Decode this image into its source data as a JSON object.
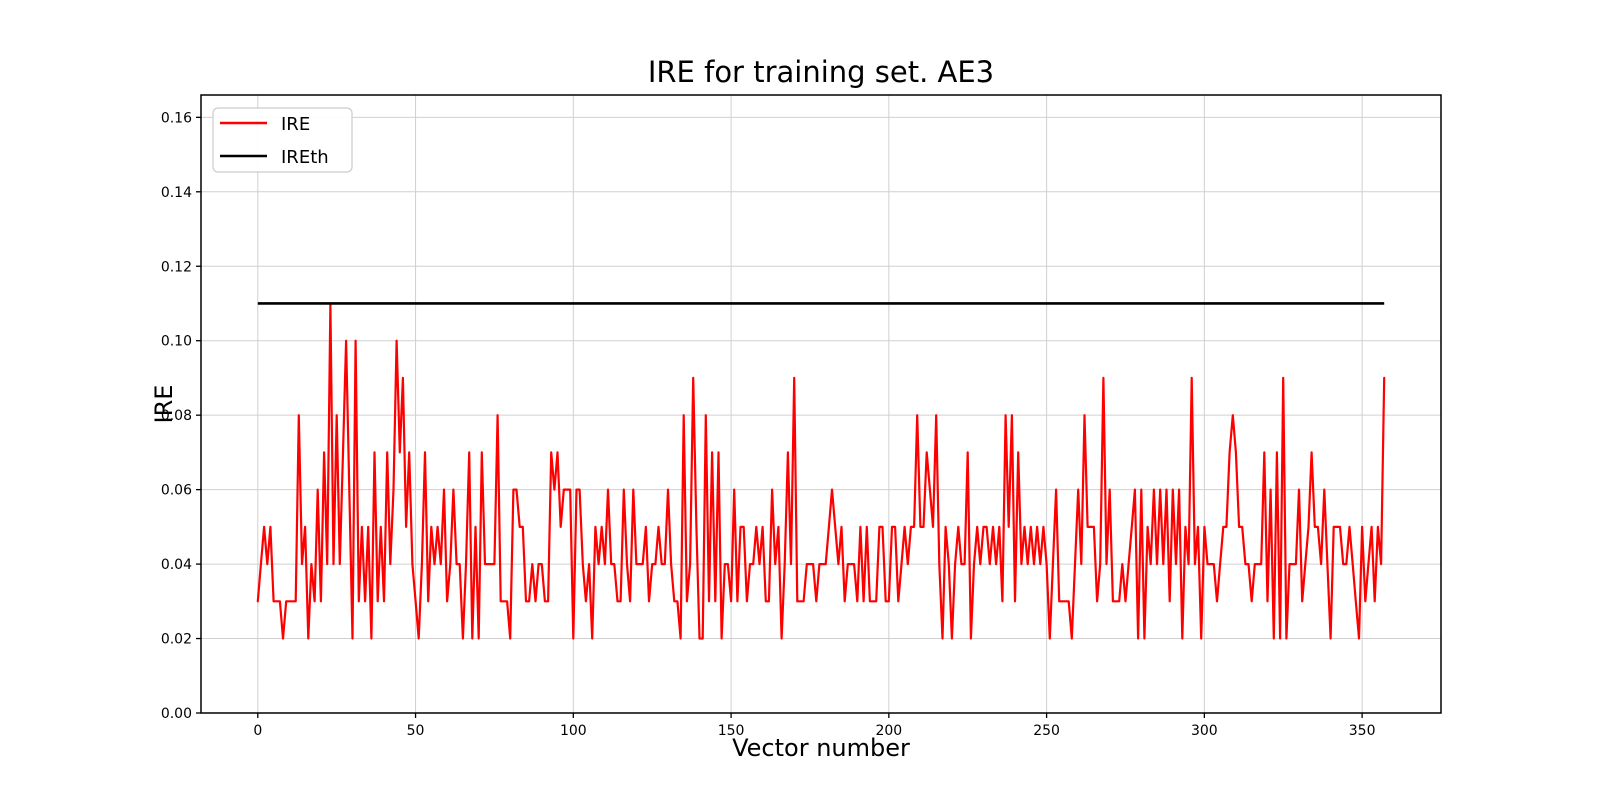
{
  "chart_data": {
    "type": "line",
    "title": "IRE for training set. AE3",
    "xlabel": "Vector number",
    "ylabel": "IRE",
    "xlim": [
      -18,
      375
    ],
    "ylim": [
      0,
      0.166
    ],
    "xticks": [
      0,
      50,
      100,
      150,
      200,
      250,
      300,
      350
    ],
    "yticks": [
      0.0,
      0.02,
      0.04,
      0.06,
      0.08,
      0.1,
      0.12,
      0.14,
      0.16
    ],
    "grid": true,
    "grid_color": "#d0d0d0",
    "background": "#ffffff",
    "legend_position": "upper-left",
    "series": [
      {
        "name": "IRE",
        "color": "#ff0000",
        "x_start": 0,
        "x_step": 1,
        "values": [
          0.03,
          0.04,
          0.05,
          0.04,
          0.05,
          0.03,
          0.03,
          0.03,
          0.02,
          0.03,
          0.03,
          0.03,
          0.03,
          0.08,
          0.04,
          0.05,
          0.02,
          0.04,
          0.03,
          0.06,
          0.03,
          0.07,
          0.04,
          0.11,
          0.04,
          0.08,
          0.04,
          0.07,
          0.1,
          0.06,
          0.02,
          0.1,
          0.03,
          0.05,
          0.03,
          0.05,
          0.02,
          0.07,
          0.03,
          0.05,
          0.03,
          0.07,
          0.04,
          0.06,
          0.1,
          0.07,
          0.09,
          0.05,
          0.07,
          0.04,
          0.03,
          0.02,
          0.04,
          0.07,
          0.03,
          0.05,
          0.04,
          0.05,
          0.04,
          0.06,
          0.03,
          0.04,
          0.06,
          0.04,
          0.04,
          0.02,
          0.04,
          0.07,
          0.02,
          0.05,
          0.02,
          0.07,
          0.04,
          0.04,
          0.04,
          0.04,
          0.08,
          0.03,
          0.03,
          0.03,
          0.02,
          0.06,
          0.06,
          0.05,
          0.05,
          0.03,
          0.03,
          0.04,
          0.03,
          0.04,
          0.04,
          0.03,
          0.03,
          0.07,
          0.06,
          0.07,
          0.05,
          0.06,
          0.06,
          0.06,
          0.02,
          0.06,
          0.06,
          0.04,
          0.03,
          0.04,
          0.02,
          0.05,
          0.04,
          0.05,
          0.04,
          0.06,
          0.04,
          0.04,
          0.03,
          0.03,
          0.06,
          0.04,
          0.03,
          0.06,
          0.04,
          0.04,
          0.04,
          0.05,
          0.03,
          0.04,
          0.04,
          0.05,
          0.04,
          0.04,
          0.06,
          0.04,
          0.03,
          0.03,
          0.02,
          0.08,
          0.03,
          0.04,
          0.09,
          0.05,
          0.02,
          0.02,
          0.08,
          0.03,
          0.07,
          0.03,
          0.07,
          0.02,
          0.04,
          0.04,
          0.03,
          0.06,
          0.03,
          0.05,
          0.05,
          0.03,
          0.04,
          0.04,
          0.05,
          0.04,
          0.05,
          0.03,
          0.03,
          0.06,
          0.04,
          0.05,
          0.02,
          0.04,
          0.07,
          0.04,
          0.09,
          0.03,
          0.03,
          0.03,
          0.04,
          0.04,
          0.04,
          0.03,
          0.04,
          0.04,
          0.04,
          0.05,
          0.06,
          0.05,
          0.04,
          0.05,
          0.03,
          0.04,
          0.04,
          0.04,
          0.03,
          0.05,
          0.03,
          0.05,
          0.03,
          0.03,
          0.03,
          0.05,
          0.05,
          0.03,
          0.03,
          0.05,
          0.05,
          0.03,
          0.04,
          0.05,
          0.04,
          0.05,
          0.05,
          0.08,
          0.05,
          0.05,
          0.07,
          0.06,
          0.05,
          0.08,
          0.04,
          0.02,
          0.05,
          0.04,
          0.02,
          0.04,
          0.05,
          0.04,
          0.04,
          0.07,
          0.02,
          0.04,
          0.05,
          0.04,
          0.05,
          0.05,
          0.04,
          0.05,
          0.04,
          0.05,
          0.03,
          0.08,
          0.05,
          0.08,
          0.03,
          0.07,
          0.04,
          0.05,
          0.04,
          0.05,
          0.04,
          0.05,
          0.04,
          0.05,
          0.04,
          0.02,
          0.04,
          0.06,
          0.03,
          0.03,
          0.03,
          0.03,
          0.02,
          0.04,
          0.06,
          0.04,
          0.08,
          0.05,
          0.05,
          0.05,
          0.03,
          0.04,
          0.09,
          0.04,
          0.06,
          0.03,
          0.03,
          0.03,
          0.04,
          0.03,
          0.04,
          0.05,
          0.06,
          0.02,
          0.06,
          0.02,
          0.05,
          0.04,
          0.06,
          0.04,
          0.06,
          0.04,
          0.06,
          0.03,
          0.06,
          0.04,
          0.06,
          0.02,
          0.05,
          0.04,
          0.09,
          0.04,
          0.05,
          0.02,
          0.05,
          0.04,
          0.04,
          0.04,
          0.03,
          0.04,
          0.05,
          0.05,
          0.07,
          0.08,
          0.07,
          0.05,
          0.05,
          0.04,
          0.04,
          0.03,
          0.04,
          0.04,
          0.04,
          0.07,
          0.03,
          0.06,
          0.02,
          0.07,
          0.02,
          0.09,
          0.02,
          0.04,
          0.04,
          0.04,
          0.06,
          0.03,
          0.04,
          0.05,
          0.07,
          0.05,
          0.05,
          0.04,
          0.06,
          0.04,
          0.02,
          0.05,
          0.05,
          0.05,
          0.04,
          0.04,
          0.05,
          0.04,
          0.03,
          0.02,
          0.05,
          0.03,
          0.04,
          0.05,
          0.03,
          0.05,
          0.04,
          0.09
        ]
      },
      {
        "name": "IREth",
        "color": "#000000",
        "type": "hline",
        "value": 0.11,
        "x_start": 0,
        "x_end": 357
      }
    ]
  }
}
